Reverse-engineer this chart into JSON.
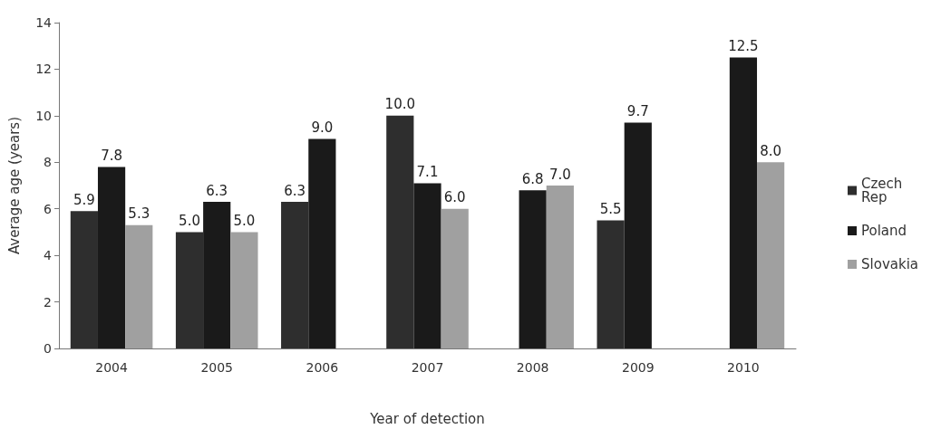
{
  "chart_data": {
    "type": "bar",
    "xlabel": "Year of detection",
    "ylabel": "Average age (years)",
    "categories": [
      "2004",
      "2005",
      "2006",
      "2007",
      "2008",
      "2009",
      "2010"
    ],
    "series": [
      {
        "name": "Czech Rep",
        "color": "#2e2e2e",
        "values": [
          5.9,
          5.0,
          6.3,
          10.0,
          null,
          5.5,
          null
        ],
        "value_labels": [
          "5.9",
          "5.0",
          "6.3",
          "10.0",
          null,
          "5.5",
          null
        ]
      },
      {
        "name": "Poland",
        "color": "#1a1a1a",
        "values": [
          7.8,
          6.3,
          9.0,
          7.1,
          6.8,
          9.7,
          12.5
        ],
        "value_labels": [
          "7.8",
          "6.3",
          "9.0",
          "7.1",
          "6.8",
          "9.7",
          "12.5"
        ]
      },
      {
        "name": "Slovakia",
        "color": "#a0a0a0",
        "values": [
          5.3,
          5.0,
          null,
          6.0,
          7.0,
          null,
          8.0
        ],
        "value_labels": [
          "5.3",
          "5.0",
          null,
          "6.0",
          "7.0",
          null,
          "8.0"
        ]
      }
    ],
    "ylim": [
      0,
      14
    ],
    "yticks": [
      0,
      2,
      4,
      6,
      8,
      10,
      12,
      14
    ],
    "grid": false,
    "legend": "right"
  }
}
